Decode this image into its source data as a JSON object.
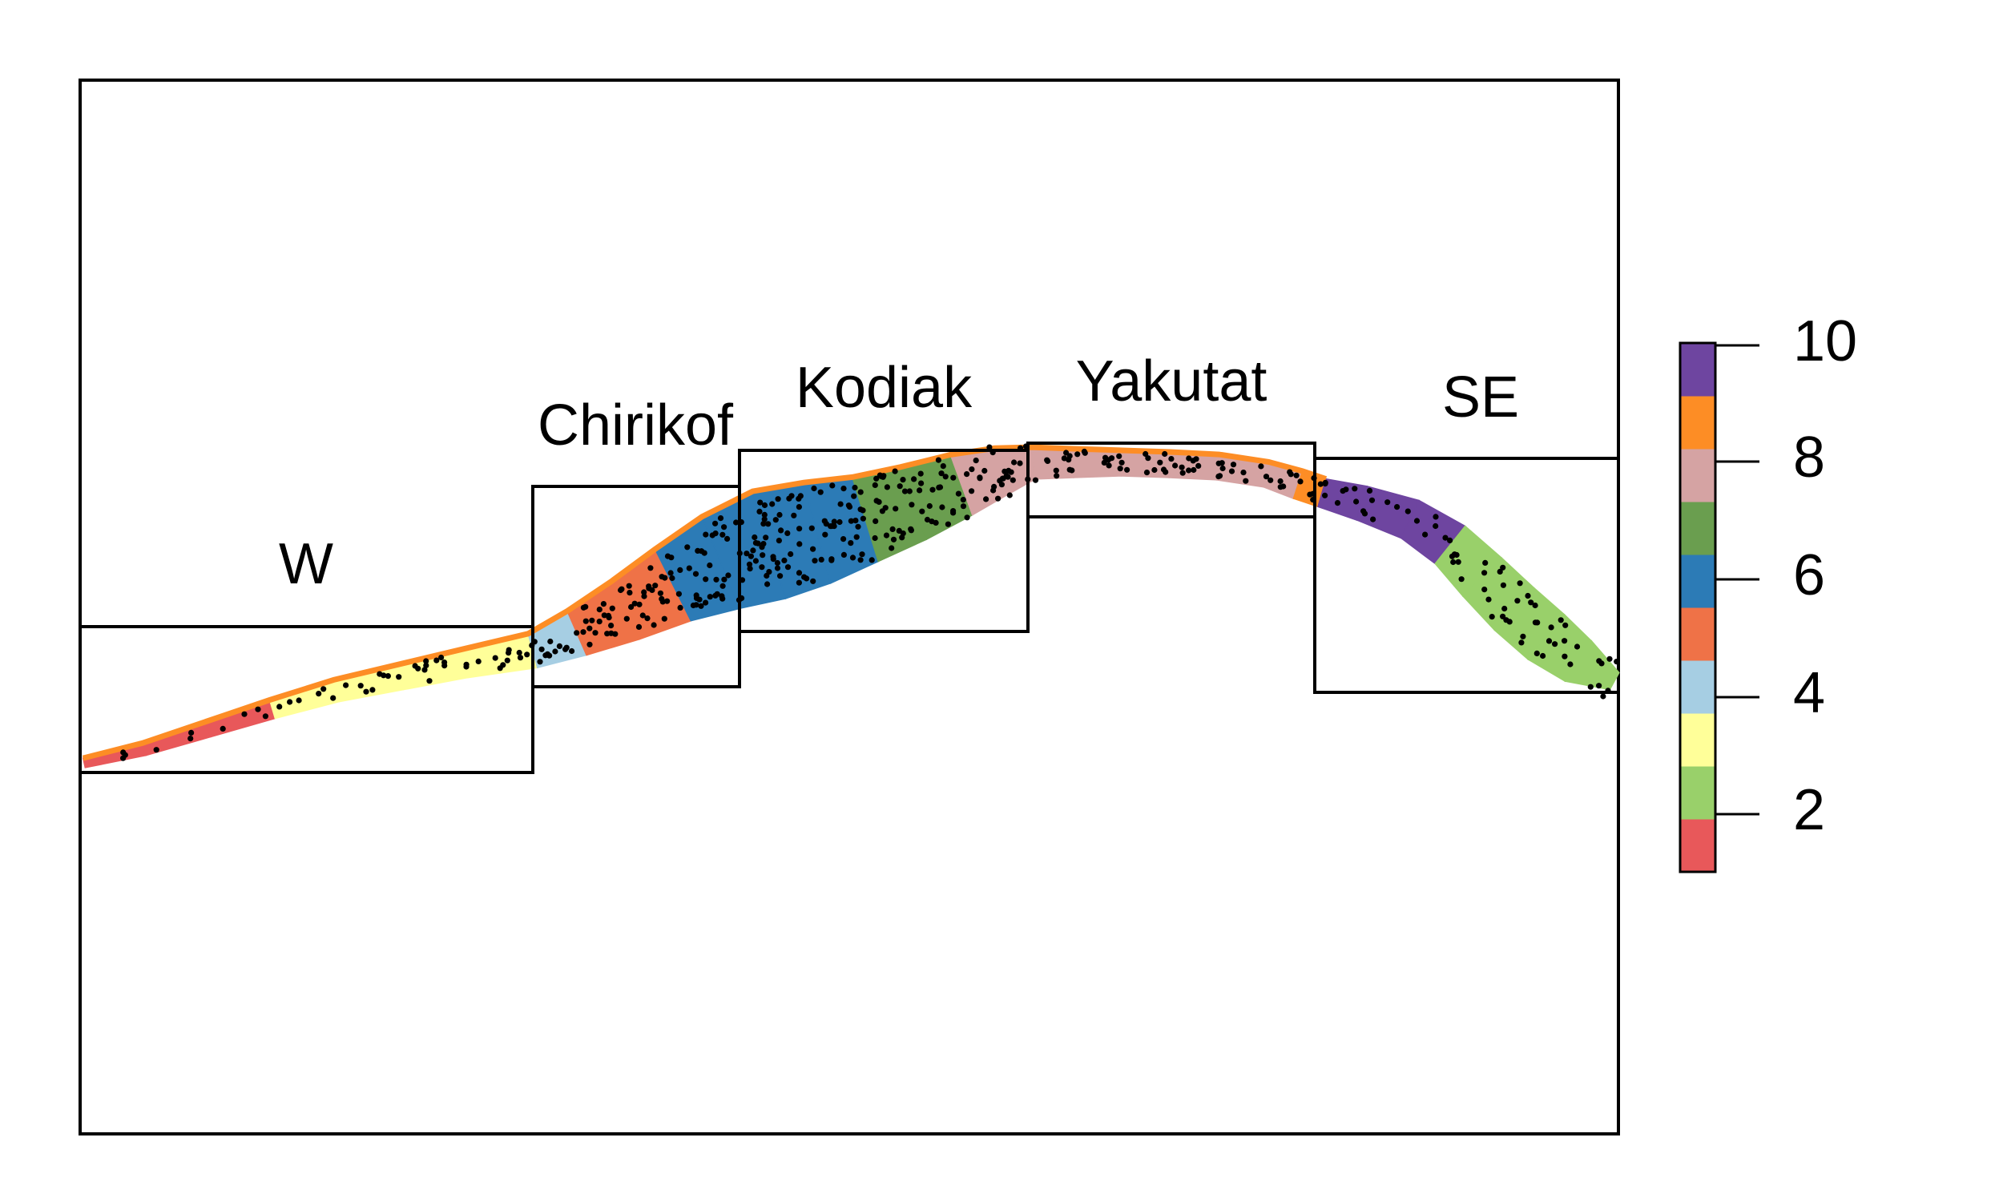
{
  "map": {
    "regions": [
      {
        "name": "W"
      },
      {
        "name": "Chirikof"
      },
      {
        "name": "Kodiak"
      },
      {
        "name": "Yakutat"
      },
      {
        "name": "SE"
      }
    ]
  },
  "legend": {
    "type": "continuous colorbar",
    "min": 1,
    "max": 10,
    "ticks": [
      "2",
      "4",
      "6",
      "8",
      "10"
    ],
    "colors": [
      "#E8585A",
      "#99D06A",
      "#FFFF99",
      "#A6CEE3",
      "#EF7247",
      "#2C7BB6",
      "#6A9E4F",
      "#D5A3A3",
      "#FD8D25",
      "#6E45A0"
    ]
  },
  "colors": {
    "frame": "#000000",
    "points": "#000000",
    "shelf_edge": "#FD8D25"
  }
}
